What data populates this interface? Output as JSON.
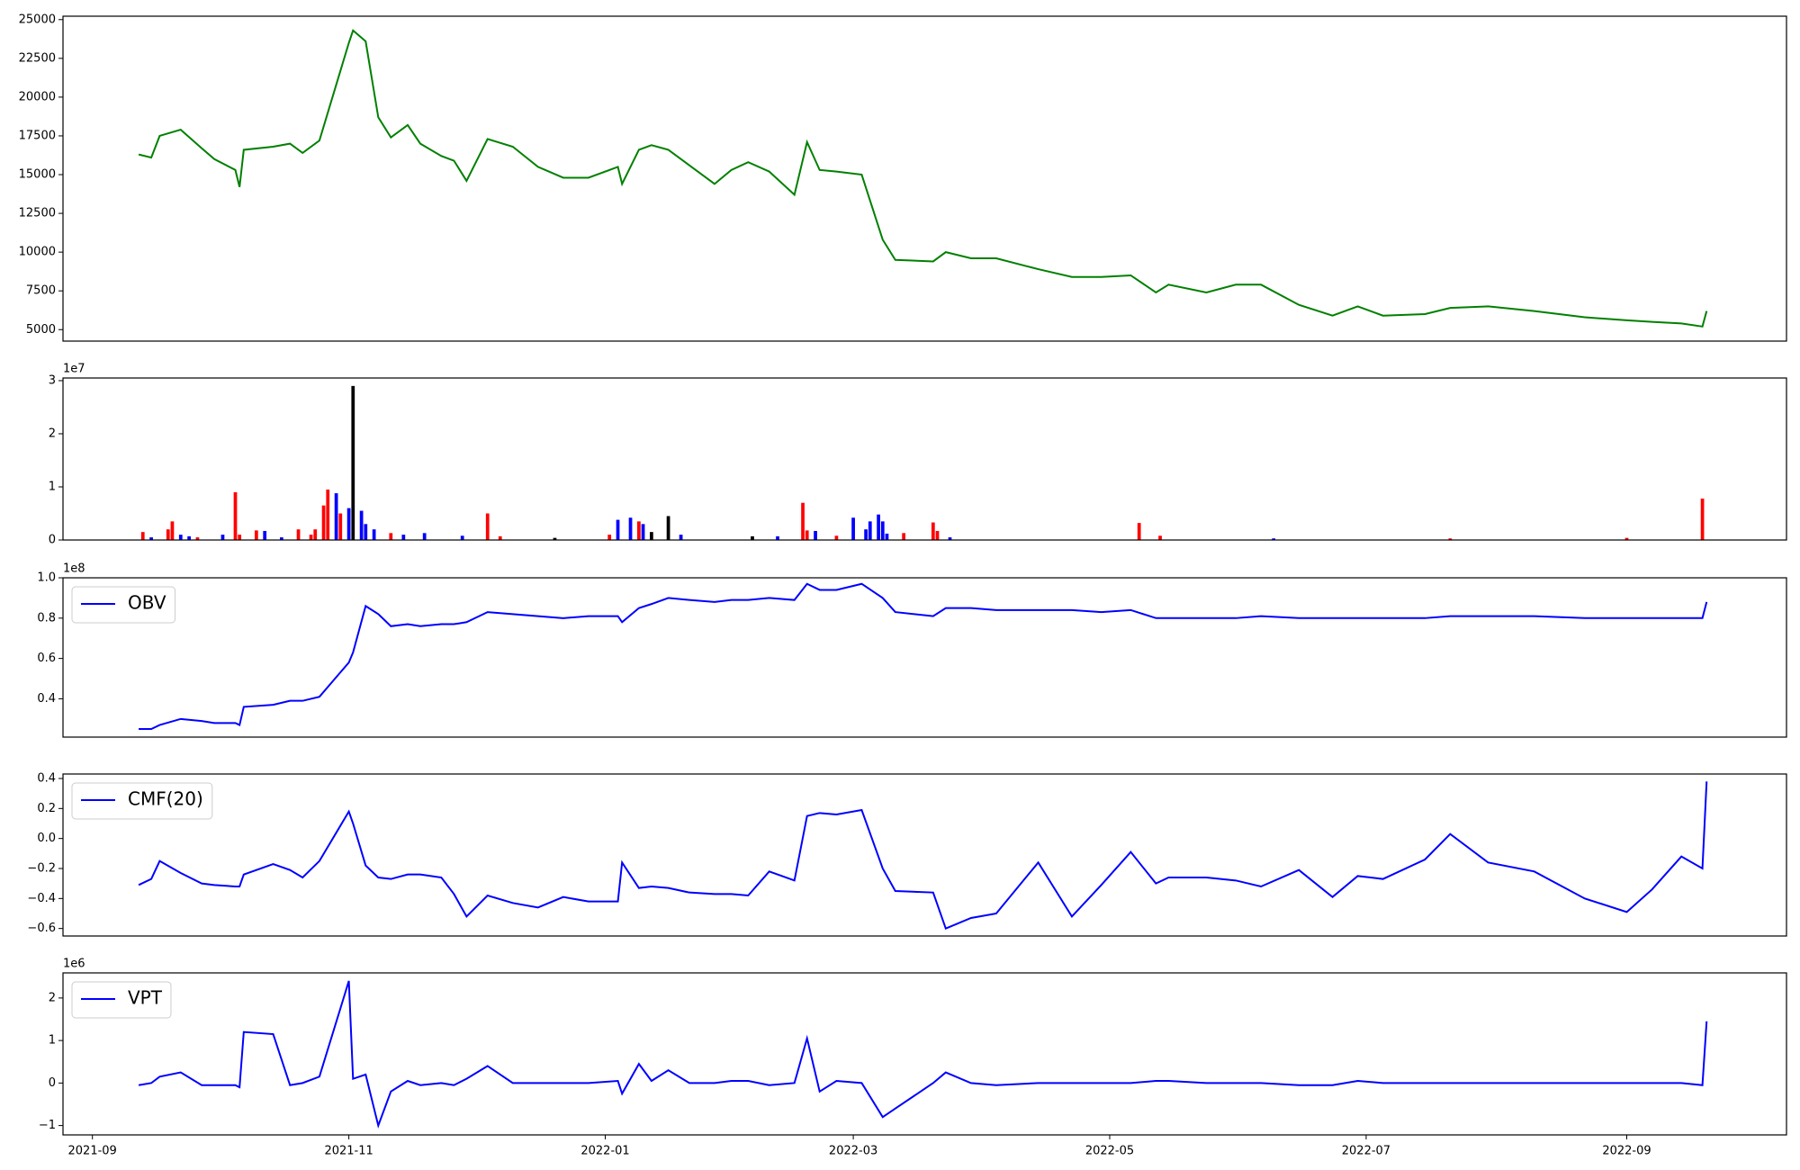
{
  "chart_data": [
    {
      "type": "line",
      "color": "green",
      "x": [
        18882,
        18885,
        18887,
        18892,
        18897,
        18900,
        18905,
        18906,
        18907,
        18914,
        18918,
        18921,
        18925,
        18932,
        18933,
        18936,
        18939,
        18942,
        18946,
        18949,
        18954,
        18957,
        18960,
        18965,
        18971,
        18977,
        18983,
        18989,
        18996,
        18997,
        19001,
        19004,
        19008,
        19013,
        19019,
        19023,
        19027,
        19032,
        19038,
        19041,
        19044,
        19048,
        19054,
        19059,
        19062,
        19071,
        19074,
        19080,
        19086,
        19096,
        19104,
        19111,
        19118,
        19124,
        19127,
        19136,
        19143,
        19149,
        19158,
        19166,
        19172,
        19178,
        19188,
        19194,
        19203,
        19214,
        19226,
        19236,
        19242,
        19249,
        19254,
        19255
      ],
      "values": [
        16300,
        16100,
        17500,
        17900,
        16700,
        16000,
        15300,
        14200,
        16600,
        16800,
        17000,
        16400,
        17200,
        23500,
        24300,
        23600,
        18700,
        17400,
        18200,
        17000,
        16200,
        15900,
        14600,
        17300,
        16800,
        15500,
        14800,
        14800,
        15500,
        14400,
        16600,
        16900,
        16600,
        15600,
        14400,
        15300,
        15800,
        15200,
        13700,
        17100,
        15300,
        15200,
        15000,
        10800,
        9500,
        9400,
        10000,
        9600,
        9600,
        8900,
        8400,
        8400,
        8500,
        7400,
        7900,
        7400,
        7900,
        7900,
        6600,
        5900,
        6500,
        5900,
        6000,
        6400,
        6500,
        6200,
        5800,
        5600,
        5500,
        5400,
        5200,
        6200
      ],
      "xlim": [
        18864,
        19274
      ],
      "ylim": [
        4260,
        25220
      ],
      "yticks": [
        5000,
        7500,
        10000,
        12500,
        15000,
        17500,
        20000,
        22500,
        25000
      ]
    },
    {
      "type": "bar",
      "offset_label": "1e7",
      "x": [
        18883,
        18885,
        18889,
        18890,
        18892,
        18894,
        18896,
        18902,
        18905,
        18906,
        18910,
        18912,
        18916,
        18920,
        18923,
        18924,
        18926,
        18927,
        18929,
        18930,
        18932,
        18933,
        18935,
        18936,
        18938,
        18942,
        18945,
        18950,
        18959,
        18965,
        18968,
        18981,
        18994,
        18996,
        18999,
        19001,
        19002,
        19004,
        19008,
        19011,
        19028,
        19034,
        19040,
        19041,
        19043,
        19048,
        19052,
        19055,
        19056,
        19058,
        19059,
        19060,
        19064,
        19071,
        19072,
        19075,
        19120,
        19125,
        19152,
        19194,
        19236,
        19254
      ],
      "values": [
        0.15,
        0.05,
        0.2,
        0.35,
        0.1,
        0.07,
        0.05,
        0.1,
        0.9,
        0.1,
        0.18,
        0.17,
        0.05,
        0.2,
        0.1,
        0.2,
        0.65,
        0.95,
        0.88,
        0.5,
        0.6,
        2.9,
        0.55,
        0.3,
        0.2,
        0.13,
        0.1,
        0.13,
        0.08,
        0.5,
        0.07,
        0.04,
        0.1,
        0.38,
        0.42,
        0.35,
        0.3,
        0.15,
        0.45,
        0.1,
        0.07,
        0.07,
        0.7,
        0.18,
        0.17,
        0.08,
        0.42,
        0.2,
        0.35,
        0.48,
        0.35,
        0.12,
        0.13,
        0.33,
        0.17,
        0.05,
        0.32,
        0.08,
        0.03,
        0.03,
        0.04,
        0.78
      ],
      "colors": [
        "red",
        "blue",
        "red",
        "red",
        "blue",
        "blue",
        "red",
        "blue",
        "red",
        "red",
        "red",
        "blue",
        "blue",
        "red",
        "red",
        "red",
        "red",
        "red",
        "blue",
        "red",
        "blue",
        "black",
        "blue",
        "blue",
        "blue",
        "red",
        "blue",
        "blue",
        "blue",
        "red",
        "red",
        "black",
        "red",
        "blue",
        "blue",
        "red",
        "blue",
        "black",
        "black",
        "blue",
        "black",
        "blue",
        "red",
        "red",
        "blue",
        "red",
        "blue",
        "blue",
        "blue",
        "blue",
        "blue",
        "blue",
        "red",
        "red",
        "red",
        "blue",
        "red",
        "red",
        "blue",
        "red",
        "red",
        "red"
      ],
      "xlim": [
        18864,
        19274
      ],
      "ylim": [
        0,
        3.05
      ],
      "yticks": [
        0,
        1,
        2,
        3
      ]
    },
    {
      "type": "line",
      "offset_label": "1e8",
      "legend": "upper left",
      "x": [
        18882,
        18885,
        18887,
        18892,
        18897,
        18900,
        18905,
        18906,
        18907,
        18914,
        18918,
        18921,
        18925,
        18932,
        18933,
        18936,
        18939,
        18942,
        18946,
        18949,
        18954,
        18957,
        18960,
        18965,
        18971,
        18977,
        18983,
        18989,
        18996,
        18997,
        19001,
        19004,
        19008,
        19013,
        19019,
        19023,
        19027,
        19032,
        19038,
        19041,
        19044,
        19048,
        19054,
        19059,
        19062,
        19071,
        19074,
        19080,
        19086,
        19096,
        19104,
        19111,
        19118,
        19124,
        19127,
        19136,
        19143,
        19149,
        19158,
        19166,
        19172,
        19178,
        19188,
        19194,
        19203,
        19214,
        19226,
        19236,
        19242,
        19249,
        19254,
        19255
      ],
      "series": [
        {
          "name": "OBV",
          "color": "blue",
          "values": [
            0.25,
            0.25,
            0.27,
            0.3,
            0.29,
            0.28,
            0.28,
            0.27,
            0.36,
            0.37,
            0.39,
            0.39,
            0.41,
            0.58,
            0.63,
            0.86,
            0.82,
            0.76,
            0.77,
            0.76,
            0.77,
            0.77,
            0.78,
            0.83,
            0.82,
            0.81,
            0.8,
            0.81,
            0.81,
            0.78,
            0.85,
            0.87,
            0.9,
            0.89,
            0.88,
            0.89,
            0.89,
            0.9,
            0.89,
            0.97,
            0.94,
            0.94,
            0.97,
            0.9,
            0.83,
            0.81,
            0.85,
            0.85,
            0.84,
            0.84,
            0.84,
            0.83,
            0.84,
            0.8,
            0.8,
            0.8,
            0.8,
            0.81,
            0.8,
            0.8,
            0.8,
            0.8,
            0.8,
            0.81,
            0.81,
            0.81,
            0.8,
            0.8,
            0.8,
            0.8,
            0.8,
            0.88
          ]
        }
      ],
      "xlim": [
        18864,
        19274
      ],
      "ylim": [
        0.21,
        1.0
      ],
      "yticks": [
        0.4,
        0.6,
        0.8,
        {
          "value": 1,
          "label": "1.0"
        }
      ]
    },
    {
      "type": "line",
      "legend": "upper left",
      "x": [
        18882,
        18885,
        18887,
        18892,
        18897,
        18900,
        18905,
        18906,
        18907,
        18914,
        18918,
        18921,
        18925,
        18932,
        18933,
        18936,
        18939,
        18942,
        18946,
        18949,
        18954,
        18957,
        18960,
        18965,
        18971,
        18977,
        18983,
        18989,
        18996,
        18997,
        19001,
        19004,
        19008,
        19013,
        19019,
        19023,
        19027,
        19032,
        19038,
        19041,
        19044,
        19048,
        19054,
        19059,
        19062,
        19071,
        19074,
        19080,
        19086,
        19096,
        19104,
        19111,
        19118,
        19124,
        19127,
        19136,
        19143,
        19149,
        19158,
        19166,
        19172,
        19178,
        19188,
        19194,
        19203,
        19214,
        19226,
        19236,
        19242,
        19249,
        19254,
        19255
      ],
      "series": [
        {
          "name": "CMF(20)",
          "color": "blue",
          "values": [
            -0.31,
            -0.27,
            -0.15,
            -0.23,
            -0.3,
            -0.31,
            -0.32,
            -0.32,
            -0.24,
            -0.17,
            -0.21,
            -0.26,
            -0.15,
            0.18,
            0.1,
            -0.18,
            -0.26,
            -0.27,
            -0.24,
            -0.24,
            -0.26,
            -0.37,
            -0.52,
            -0.38,
            -0.43,
            -0.46,
            -0.39,
            -0.42,
            -0.42,
            -0.16,
            -0.33,
            -0.32,
            -0.33,
            -0.36,
            -0.37,
            -0.37,
            -0.38,
            -0.22,
            -0.28,
            0.15,
            0.17,
            0.16,
            0.19,
            -0.2,
            -0.35,
            -0.36,
            -0.6,
            -0.53,
            -0.5,
            -0.16,
            -0.52,
            -0.31,
            -0.09,
            -0.3,
            -0.26,
            -0.26,
            -0.28,
            -0.32,
            -0.21,
            -0.39,
            -0.25,
            -0.27,
            -0.14,
            0.03,
            -0.16,
            -0.22,
            -0.4,
            -0.49,
            -0.34,
            -0.12,
            -0.2,
            0.38
          ]
        }
      ],
      "xlim": [
        18864,
        19274
      ],
      "ylim": [
        -0.65,
        0.43
      ],
      "yticks": [
        {
          "value": -0.6,
          "label": "−0.6"
        },
        {
          "value": -0.4,
          "label": "−0.4"
        },
        {
          "value": -0.2,
          "label": "−0.2"
        },
        {
          "value": 0,
          "label": "0.0"
        },
        0.2,
        0.4
      ]
    },
    {
      "type": "line",
      "offset_label": "1e6",
      "legend": "upper left",
      "x": [
        18882,
        18885,
        18887,
        18892,
        18897,
        18900,
        18905,
        18906,
        18907,
        18914,
        18918,
        18921,
        18925,
        18932,
        18933,
        18936,
        18939,
        18942,
        18946,
        18949,
        18954,
        18957,
        18960,
        18965,
        18971,
        18977,
        18983,
        18989,
        18996,
        18997,
        19001,
        19004,
        19008,
        19013,
        19019,
        19023,
        19027,
        19032,
        19038,
        19041,
        19044,
        19048,
        19054,
        19059,
        19062,
        19071,
        19074,
        19080,
        19086,
        19096,
        19104,
        19111,
        19118,
        19124,
        19127,
        19136,
        19143,
        19149,
        19158,
        19166,
        19172,
        19178,
        19188,
        19194,
        19203,
        19214,
        19226,
        19236,
        19242,
        19249,
        19254,
        19255
      ],
      "series": [
        {
          "name": "VPT",
          "color": "blue",
          "values": [
            -0.05,
            0,
            0.15,
            0.25,
            -0.05,
            -0.05,
            -0.05,
            -0.1,
            1.2,
            1.15,
            -0.05,
            0,
            0.15,
            2.4,
            0.1,
            0.2,
            -1.0,
            -0.2,
            0.05,
            -0.05,
            0,
            -0.05,
            0.1,
            0.4,
            0,
            0,
            0,
            0,
            0.05,
            -0.25,
            0.45,
            0.05,
            0.3,
            0,
            0,
            0.05,
            0.05,
            -0.05,
            0,
            1.05,
            -0.2,
            0.05,
            0,
            -0.8,
            -0.6,
            0,
            0.25,
            0,
            -0.05,
            0,
            0,
            0,
            0,
            0.05,
            0.05,
            0,
            0,
            0,
            -0.05,
            -0.05,
            0.05,
            0,
            0,
            0,
            0,
            0,
            0,
            0,
            0,
            0,
            -0.05,
            1.45
          ]
        }
      ],
      "xlim": [
        18864,
        19274
      ],
      "ylim": [
        -1.22,
        2.59
      ],
      "yticks": [
        {
          "value": -1,
          "label": "−1"
        },
        0,
        1,
        2
      ],
      "xticks": [
        {
          "value": 18871,
          "label": "2021-09"
        },
        {
          "value": 18932,
          "label": "2021-11"
        },
        {
          "value": 18993,
          "label": "2022-01"
        },
        {
          "value": 19052,
          "label": "2022-03"
        },
        {
          "value": 19113,
          "label": "2022-05"
        },
        {
          "value": 19174,
          "label": "2022-07"
        },
        {
          "value": 19236,
          "label": "2022-09"
        }
      ]
    }
  ]
}
